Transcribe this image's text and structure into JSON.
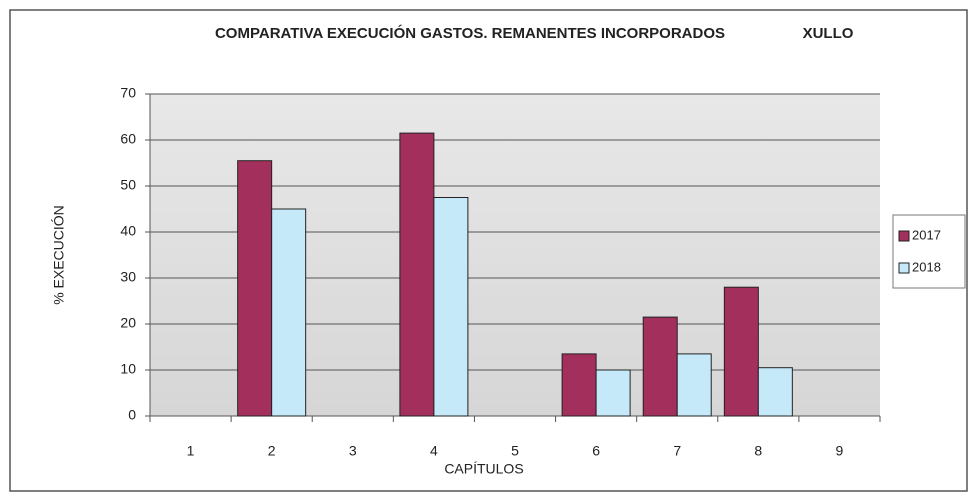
{
  "chart_data": {
    "type": "bar",
    "title": "COMPARATIVA EXECUCIÓN GASTOS. REMANENTES INCORPORADOS",
    "subtitle": "XULLO",
    "x_label": "CAPÍTULOS",
    "y_label": "% EXECUCIÓN",
    "categories": [
      "1",
      "2",
      "3",
      "4",
      "5",
      "6",
      "7",
      "8",
      "9"
    ],
    "series": [
      {
        "name": "2017",
        "color": "#a3305c",
        "values": [
          0,
          55.5,
          0,
          61.5,
          0,
          13.5,
          21.5,
          28,
          0
        ]
      },
      {
        "name": "2018",
        "color": "#c6e9fa",
        "values": [
          0,
          45,
          0,
          47.5,
          0,
          10,
          13.5,
          10.5,
          0
        ]
      }
    ],
    "ylim": [
      0,
      70
    ],
    "yticks": [
      0,
      10,
      20,
      30,
      40,
      50,
      60,
      70
    ],
    "grid": true,
    "legend": "right"
  }
}
